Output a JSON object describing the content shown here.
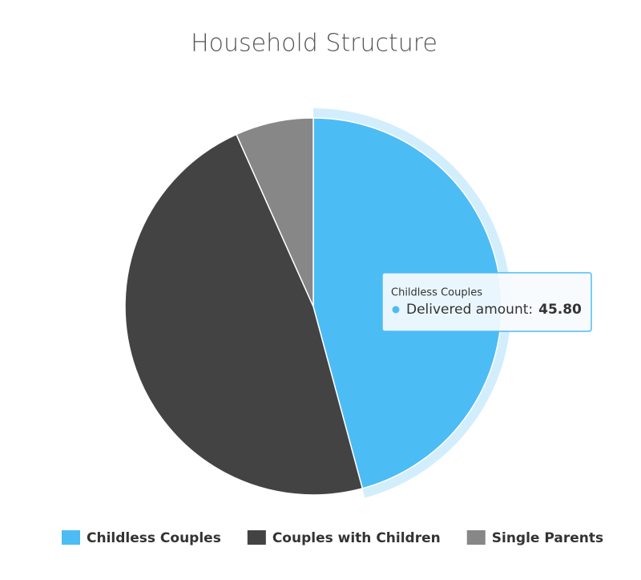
{
  "chart_data": {
    "type": "pie",
    "title": "Household Structure",
    "categories": [
      "Childless Couples",
      "Couples with Children",
      "Single Parents"
    ],
    "values": [
      45.8,
      47.5,
      6.7
    ],
    "value_labels": [
      "45.80",
      null,
      null
    ],
    "series_name": "Delivered amount:",
    "colors": [
      "#4cbcf5",
      "#434343",
      "#878787"
    ],
    "legend": "bottom"
  }
}
